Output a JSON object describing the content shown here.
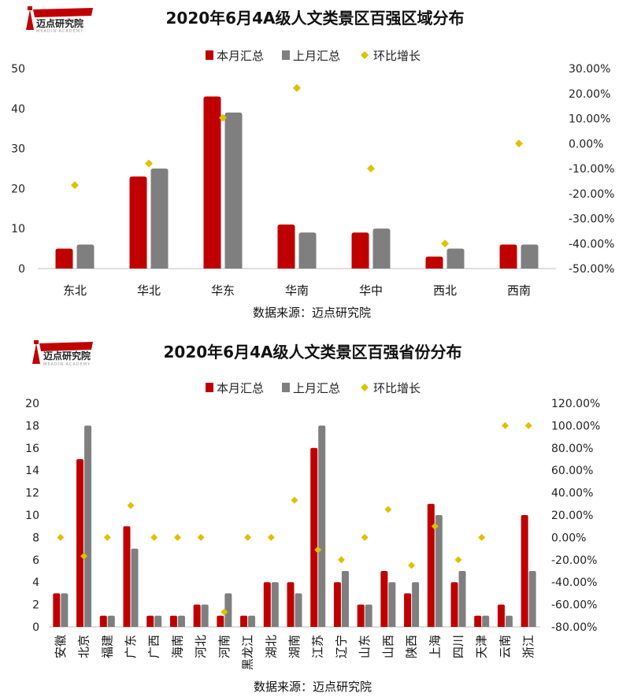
{
  "logo": {
    "name": "迈点研究院",
    "subtitle": "MEADIN ACADEMY"
  },
  "legend": {
    "current": "本月汇总",
    "previous": "上月汇总",
    "growth": "环比增长"
  },
  "colors": {
    "current": "#C00000",
    "previous": "#7F7F7F",
    "growth": "#E0C000"
  },
  "chart_data": [
    {
      "type": "bar",
      "title": "2020年6月4A级人文类景区百强区域分布",
      "source": "数据来源：迈点研究院",
      "categories": [
        "东北",
        "华北",
        "华东",
        "华南",
        "华中",
        "西北",
        "西南"
      ],
      "series": [
        {
          "name": "本月汇总",
          "type": "bar",
          "axis": "left",
          "values": [
            5,
            23,
            43,
            11,
            9,
            3,
            6
          ]
        },
        {
          "name": "上月汇总",
          "type": "bar",
          "axis": "left",
          "values": [
            6,
            25,
            39,
            9,
            10,
            5,
            6
          ]
        },
        {
          "name": "环比增长",
          "type": "scatter",
          "axis": "right",
          "values": [
            -16.67,
            -8.0,
            10.26,
            22.22,
            -10.0,
            -40.0,
            0.0
          ]
        }
      ],
      "ylim": [
        0,
        50
      ],
      "yticks": [
        "0",
        "10",
        "20",
        "30",
        "40",
        "50"
      ],
      "y2lim": [
        -50,
        30
      ],
      "y2ticks": [
        "-50.00%",
        "-40.00%",
        "-30.00%",
        "-20.00%",
        "-10.00%",
        "0.00%",
        "10.00%",
        "20.00%",
        "30.00%"
      ],
      "grid": false,
      "legend_position": "top"
    },
    {
      "type": "bar",
      "title": "2020年6月4A级人文类景区百强省份分布",
      "source": "数据来源：迈点研究院",
      "categories": [
        "安徽",
        "北京",
        "福建",
        "广东",
        "广西",
        "海南",
        "河北",
        "河南",
        "黑龙江",
        "湖北",
        "湖南",
        "江苏",
        "辽宁",
        "山东",
        "山西",
        "陕西",
        "上海",
        "四川",
        "天津",
        "云南",
        "浙江"
      ],
      "series": [
        {
          "name": "本月汇总",
          "type": "bar",
          "axis": "left",
          "values": [
            3,
            15,
            1,
            9,
            1,
            1,
            2,
            1,
            1,
            4,
            4,
            16,
            4,
            2,
            5,
            3,
            11,
            4,
            1,
            2,
            10
          ]
        },
        {
          "name": "上月汇总",
          "type": "bar",
          "axis": "left",
          "values": [
            3,
            18,
            1,
            7,
            1,
            1,
            2,
            3,
            1,
            4,
            3,
            18,
            5,
            2,
            4,
            4,
            10,
            5,
            1,
            1,
            5
          ]
        },
        {
          "name": "环比增长",
          "type": "scatter",
          "axis": "right",
          "values": [
            0,
            -16.67,
            0,
            28.57,
            0,
            0,
            0,
            -66.67,
            0,
            0,
            33.33,
            -11.11,
            -20.0,
            0,
            25.0,
            -25.0,
            10.0,
            -20.0,
            0,
            100.0,
            100.0
          ]
        }
      ],
      "ylim": [
        0,
        20
      ],
      "yticks": [
        "0",
        "2",
        "4",
        "6",
        "8",
        "10",
        "12",
        "14",
        "16",
        "18",
        "20"
      ],
      "y2lim": [
        -80,
        120
      ],
      "y2ticks": [
        "-80.00%",
        "-60.00%",
        "-40.00%",
        "-20.00%",
        "0.00%",
        "20.00%",
        "40.00%",
        "60.00%",
        "80.00%",
        "100.00%",
        "120.00%"
      ],
      "grid": false,
      "legend_position": "top"
    }
  ]
}
